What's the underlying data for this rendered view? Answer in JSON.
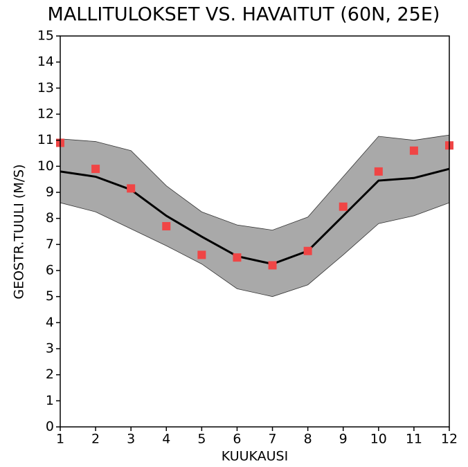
{
  "chart_data": {
    "type": "line",
    "title": "MALLITULOKSET VS. HAVAITUT (60N, 25E)",
    "x_label": "KUUKAUSI",
    "y_label": "GEOSTR.TUULI (M/S)",
    "x": [
      1,
      2,
      3,
      4,
      5,
      6,
      7,
      8,
      9,
      10,
      11,
      12
    ],
    "xlim": [
      1,
      12
    ],
    "xticks": [
      1,
      2,
      3,
      4,
      5,
      6,
      7,
      8,
      9,
      10,
      11,
      12
    ],
    "ylim": [
      0,
      15
    ],
    "yticks": [
      0,
      1,
      2,
      3,
      4,
      5,
      6,
      7,
      8,
      9,
      10,
      11,
      12,
      13,
      14,
      15
    ],
    "series": [
      {
        "type": "band",
        "color": "#a9a9a9",
        "upper": [
          11.05,
          10.95,
          10.6,
          9.25,
          8.25,
          7.75,
          7.55,
          8.05,
          9.6,
          11.15,
          11.0,
          11.2
        ],
        "lower": [
          8.6,
          8.25,
          7.6,
          6.95,
          6.25,
          5.3,
          5.0,
          5.45,
          6.6,
          7.8,
          8.1,
          8.6
        ]
      },
      {
        "type": "line",
        "color": "#000000",
        "values": [
          9.8,
          9.6,
          9.1,
          8.1,
          7.3,
          6.55,
          6.25,
          6.75,
          8.1,
          9.45,
          9.55,
          9.9
        ]
      },
      {
        "type": "scatter",
        "color": "#f04545",
        "values": [
          10.9,
          9.9,
          9.15,
          7.7,
          6.6,
          6.5,
          6.2,
          6.75,
          8.45,
          9.8,
          10.6,
          10.8
        ]
      }
    ]
  }
}
